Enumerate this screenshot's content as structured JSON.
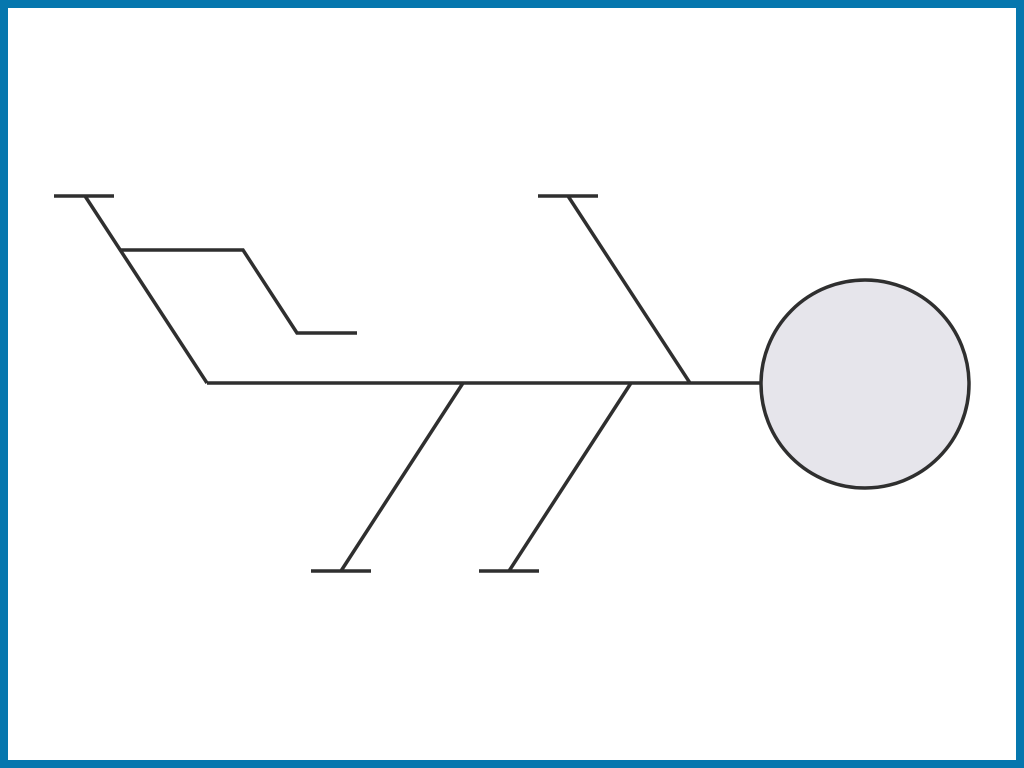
{
  "diagram": {
    "type": "fishbone",
    "frame_color": "#0677AE",
    "line_color": "#2F2F2F",
    "head_fill": "#E6E5EB",
    "background": "#FFFFFF",
    "bones": {
      "upper": 2,
      "lower": 2,
      "sub_branches": 1
    }
  }
}
